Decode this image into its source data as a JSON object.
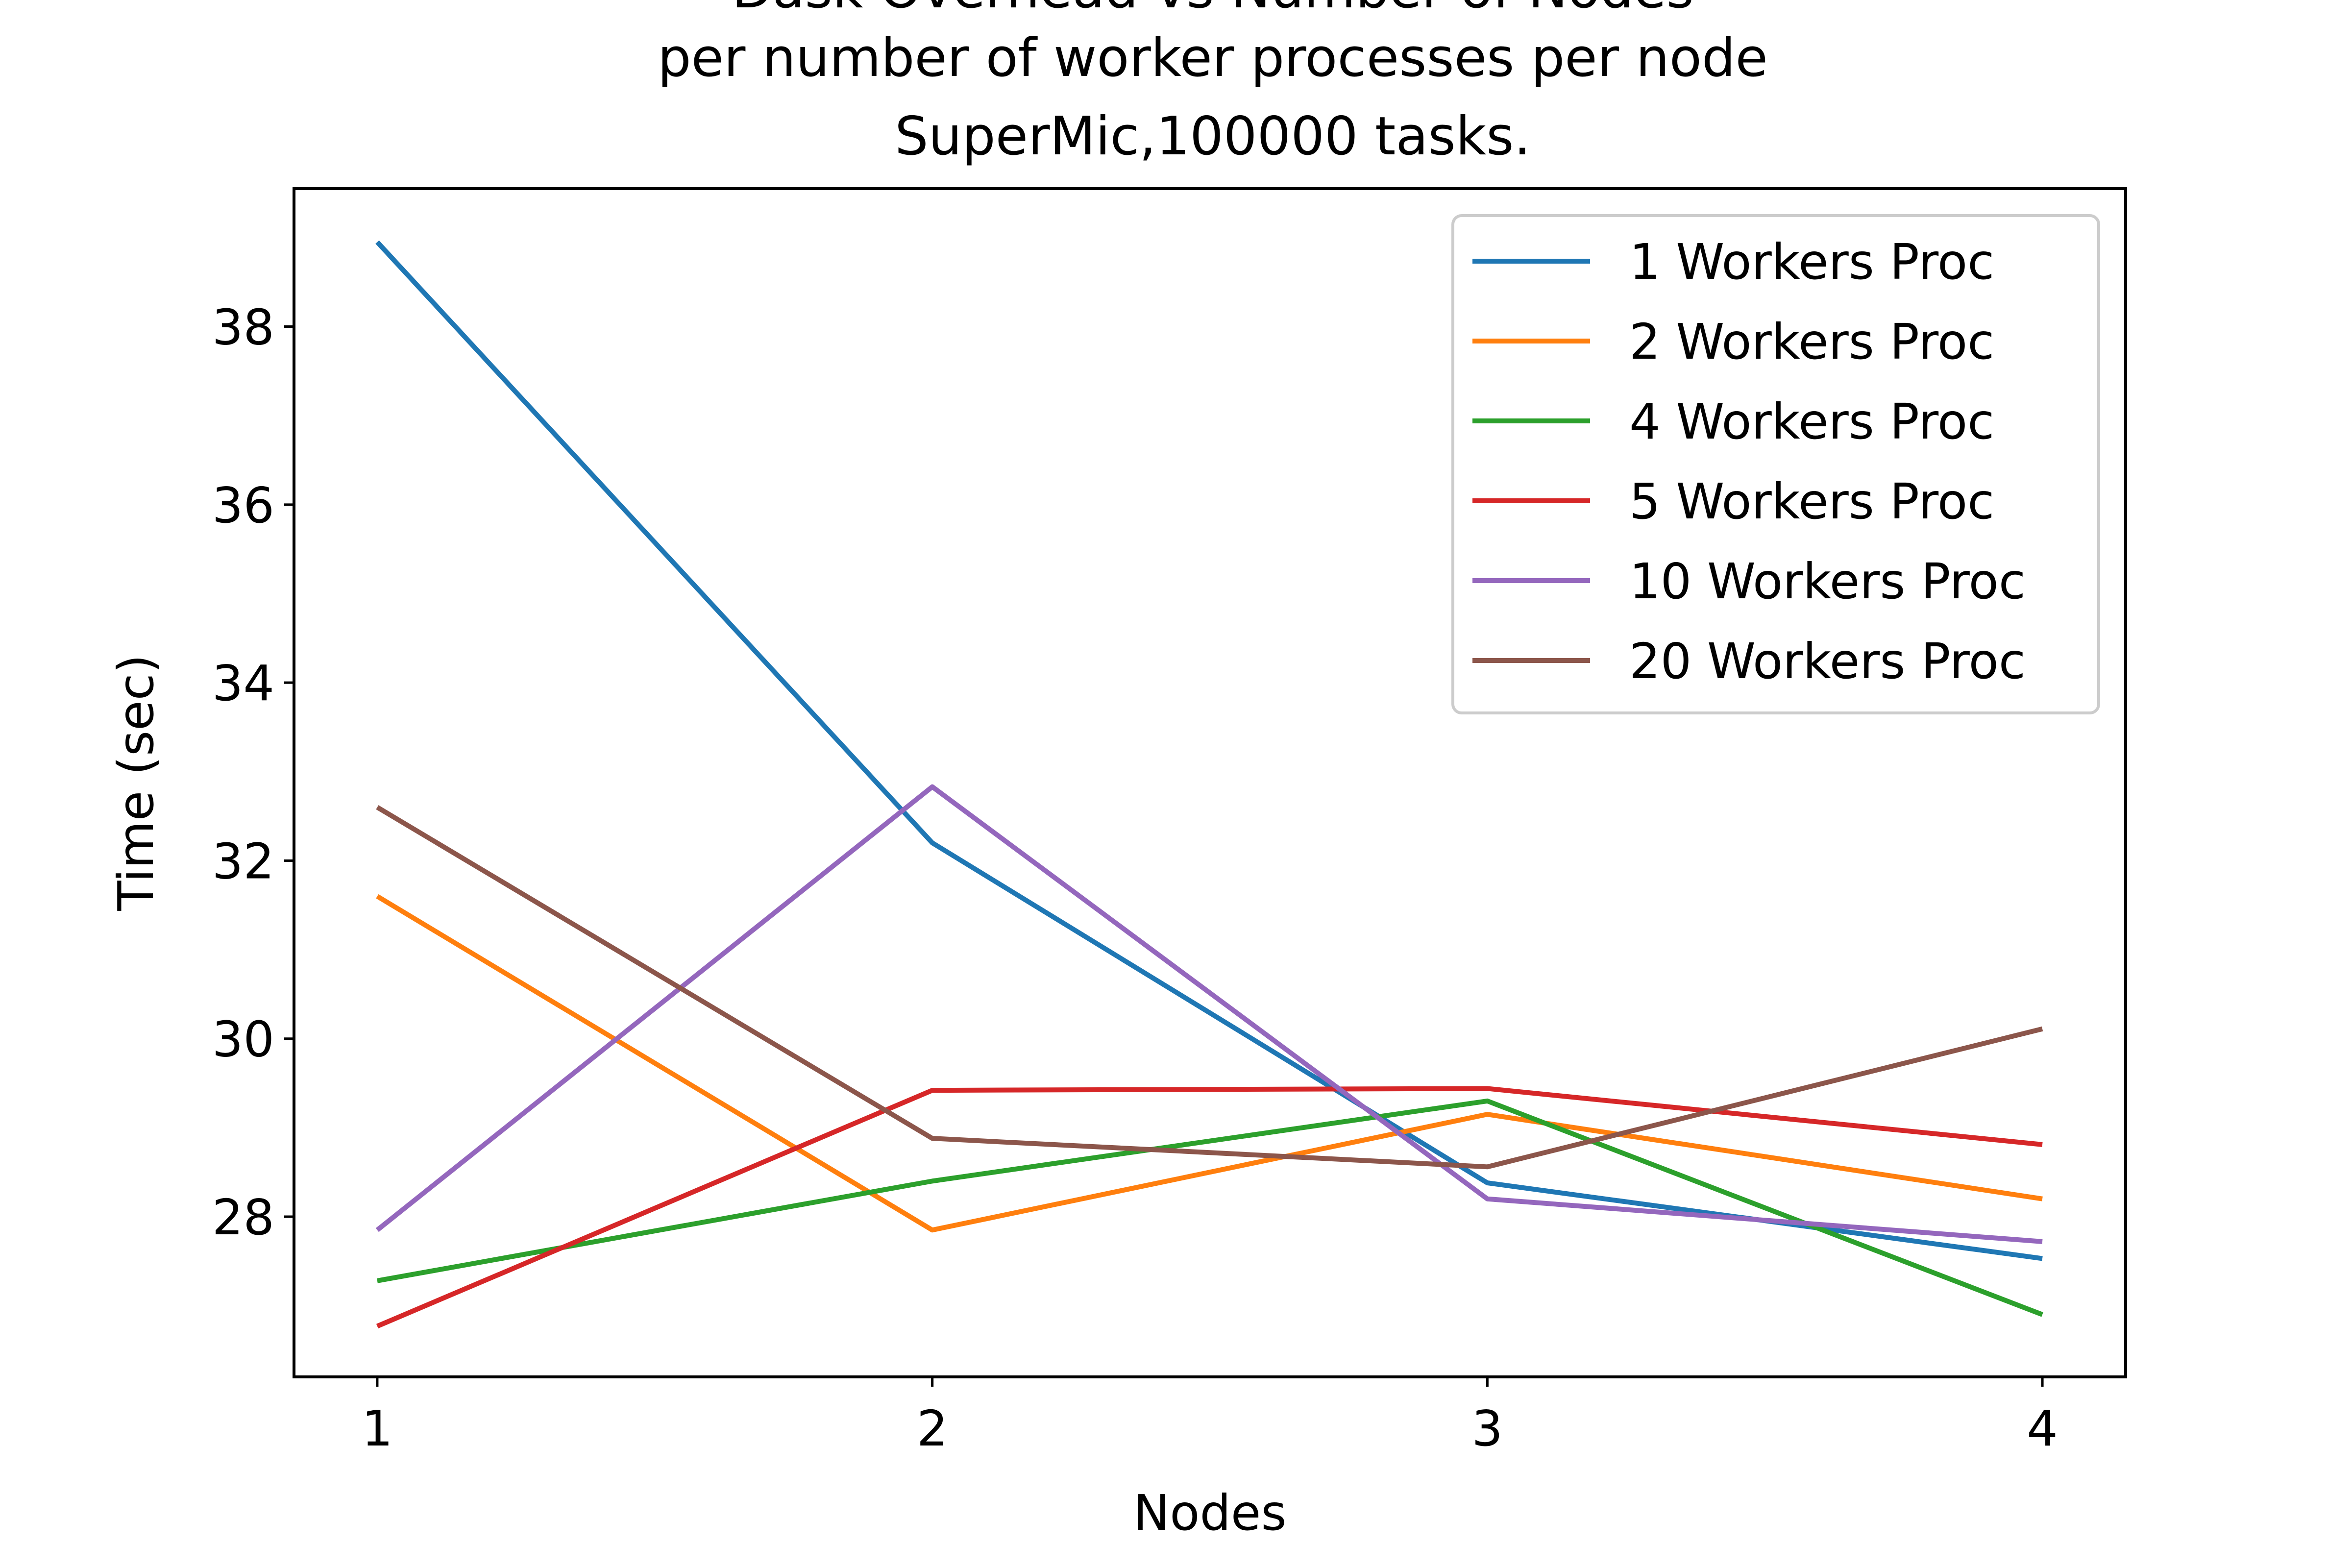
{
  "chart_data": {
    "type": "line",
    "title_lines": [
      "Dask Overhead vs Number of Nodes",
      "per number of worker processes per node",
      "SuperMic,100000 tasks."
    ],
    "xlabel": "Nodes",
    "ylabel": "Time (sec)",
    "x": [
      1,
      2,
      3,
      4
    ],
    "x_ticks": [
      "1",
      "2",
      "3",
      "4"
    ],
    "y_ticks": [
      28,
      30,
      32,
      34,
      36,
      38
    ],
    "xlim": [
      0.85,
      4.15
    ],
    "ylim": [
      26.2,
      39.55
    ],
    "grid": false,
    "legend_position": "top-right",
    "series": [
      {
        "name": "1 Workers Proc",
        "color": "#1f77b4",
        "values": [
          38.95,
          32.2,
          28.38,
          27.53
        ]
      },
      {
        "name": "2 Workers Proc",
        "color": "#ff7f0e",
        "values": [
          31.6,
          27.85,
          29.15,
          28.2
        ]
      },
      {
        "name": "4 Workers Proc",
        "color": "#2ca02c",
        "values": [
          27.28,
          28.4,
          29.3,
          26.9
        ]
      },
      {
        "name": "5 Workers Proc",
        "color": "#d62728",
        "values": [
          26.77,
          29.42,
          29.44,
          28.81
        ]
      },
      {
        "name": "10 Workers Proc",
        "color": "#9467bd",
        "values": [
          27.85,
          32.83,
          28.2,
          27.72
        ]
      },
      {
        "name": "20 Workers Proc",
        "color": "#8c564b",
        "values": [
          32.6,
          28.88,
          28.56,
          30.11
        ]
      }
    ]
  }
}
